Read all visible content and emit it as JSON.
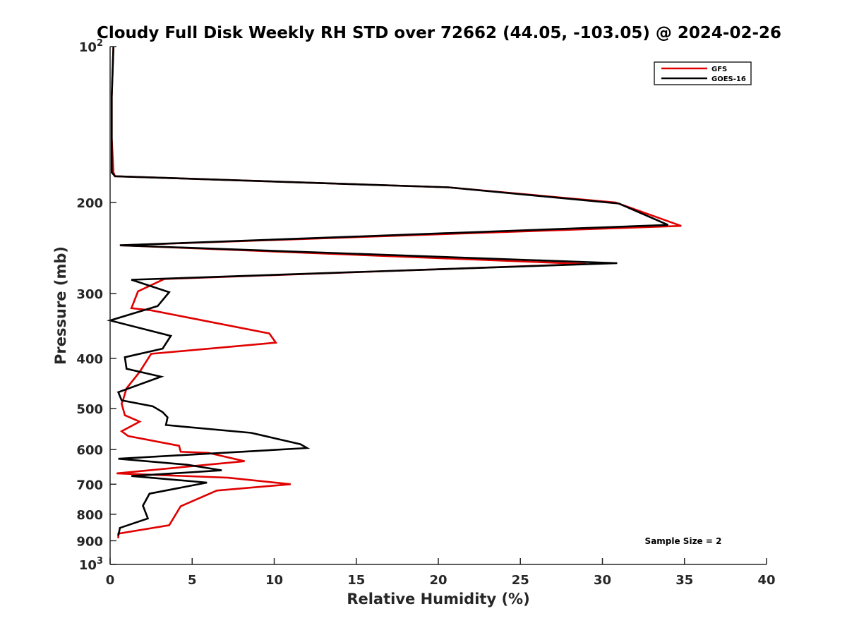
{
  "chart_data": {
    "type": "line",
    "title": "Cloudy Full Disk Weekly RH STD over 72662 (44.05, -103.05) @ 2024-02-26",
    "xlabel": "Relative Humidity (%)",
    "ylabel": "Pressure (mb)",
    "xlim": [
      0,
      40
    ],
    "ylim": [
      100,
      1000
    ],
    "y_scale": "log",
    "y_reversed": true,
    "x_ticks": [
      "0",
      "5",
      "10",
      "15",
      "20",
      "25",
      "30",
      "35",
      "40"
    ],
    "y_ticks": [
      {
        "value": 100,
        "base": "10",
        "exp": "2"
      },
      {
        "value": 200,
        "label": "200"
      },
      {
        "value": 300,
        "label": "300"
      },
      {
        "value": 400,
        "label": "400"
      },
      {
        "value": 500,
        "label": "500"
      },
      {
        "value": 600,
        "label": "600"
      },
      {
        "value": 700,
        "label": "700"
      },
      {
        "value": 800,
        "label": "800"
      },
      {
        "value": 900,
        "label": "900"
      },
      {
        "value": 1000,
        "base": "10",
        "exp": "3"
      }
    ],
    "legend_position": "top-right",
    "annotation": "Sample Size = 2",
    "series": [
      {
        "name": "GFS",
        "color": "#e00000",
        "points": [
          [
            0.2,
            100
          ],
          [
            0.1,
            125
          ],
          [
            0.1,
            150
          ],
          [
            0.2,
            175
          ],
          [
            0.3,
            178
          ],
          [
            20.6,
            187
          ],
          [
            30.8,
            200
          ],
          [
            34.8,
            222
          ],
          [
            0.6,
            242
          ],
          [
            29.0,
            263
          ],
          [
            3.3,
            281
          ],
          [
            1.7,
            297
          ],
          [
            1.3,
            320
          ],
          [
            2.5,
            323
          ],
          [
            9.7,
            358
          ],
          [
            10.1,
            373
          ],
          [
            2.5,
            392
          ],
          [
            1.8,
            425
          ],
          [
            1.0,
            457
          ],
          [
            0.8,
            480
          ],
          [
            0.7,
            489
          ],
          [
            0.9,
            515
          ],
          [
            1.8,
            530
          ],
          [
            0.7,
            553
          ],
          [
            1.1,
            565
          ],
          [
            4.2,
            590
          ],
          [
            4.3,
            606
          ],
          [
            6.0,
            609
          ],
          [
            8.2,
            632
          ],
          [
            0.4,
            667
          ],
          [
            7.2,
            680
          ],
          [
            11.0,
            700
          ],
          [
            6.5,
            720
          ],
          [
            4.3,
            772
          ],
          [
            3.6,
            840
          ],
          [
            0.5,
            872
          ],
          [
            0.5,
            890
          ]
        ]
      },
      {
        "name": "GOES-16",
        "color": "#000000",
        "points": [
          [
            0.2,
            100
          ],
          [
            0.1,
            125
          ],
          [
            0.1,
            150
          ],
          [
            0.1,
            175
          ],
          [
            0.3,
            178
          ],
          [
            20.6,
            187
          ],
          [
            31.0,
            201
          ],
          [
            34.0,
            221
          ],
          [
            0.6,
            242
          ],
          [
            30.9,
            262
          ],
          [
            1.3,
            282
          ],
          [
            3.6,
            298
          ],
          [
            2.9,
            317
          ],
          [
            0.0,
            338
          ],
          [
            3.7,
            362
          ],
          [
            3.2,
            383
          ],
          [
            0.9,
            398
          ],
          [
            1.0,
            419
          ],
          [
            3.1,
            434
          ],
          [
            0.5,
            465
          ],
          [
            0.7,
            482
          ],
          [
            2.6,
            495
          ],
          [
            3.2,
            508
          ],
          [
            3.5,
            520
          ],
          [
            3.4,
            538
          ],
          [
            8.6,
            557
          ],
          [
            11.6,
            586
          ],
          [
            12.0,
            596
          ],
          [
            0.5,
            625
          ],
          [
            4.7,
            642
          ],
          [
            6.8,
            658
          ],
          [
            1.3,
            675
          ],
          [
            5.9,
            695
          ],
          [
            2.4,
            730
          ],
          [
            2.0,
            770
          ],
          [
            2.3,
            815
          ],
          [
            0.6,
            850
          ],
          [
            0.5,
            880
          ]
        ]
      }
    ]
  }
}
